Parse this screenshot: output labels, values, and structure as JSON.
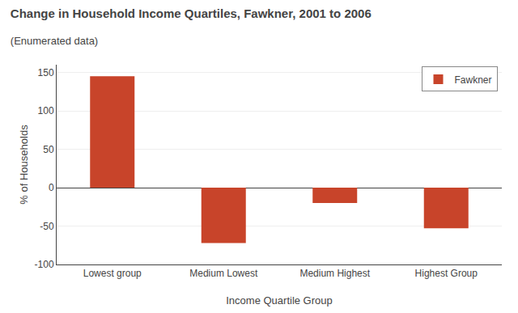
{
  "chart_data": {
    "type": "bar",
    "title": "Change in Household Income Quartiles, Fawkner, 2001 to 2006",
    "subtitle": "(Enumerated data)",
    "x_label": "Income Quartile Group",
    "y_label": "% of Households",
    "categories": [
      "Lowest group",
      "Medium Lowest",
      "Medium Highest",
      "Highest Group"
    ],
    "series": [
      {
        "name": "Fawkner",
        "color": "#C8442A",
        "values": [
          145,
          -72,
          -20,
          -53
        ]
      }
    ],
    "ylim": [
      -100,
      160
    ],
    "yticks": [
      -100,
      -50,
      0,
      50,
      100,
      150
    ],
    "grid": true,
    "legend": "upper right"
  }
}
